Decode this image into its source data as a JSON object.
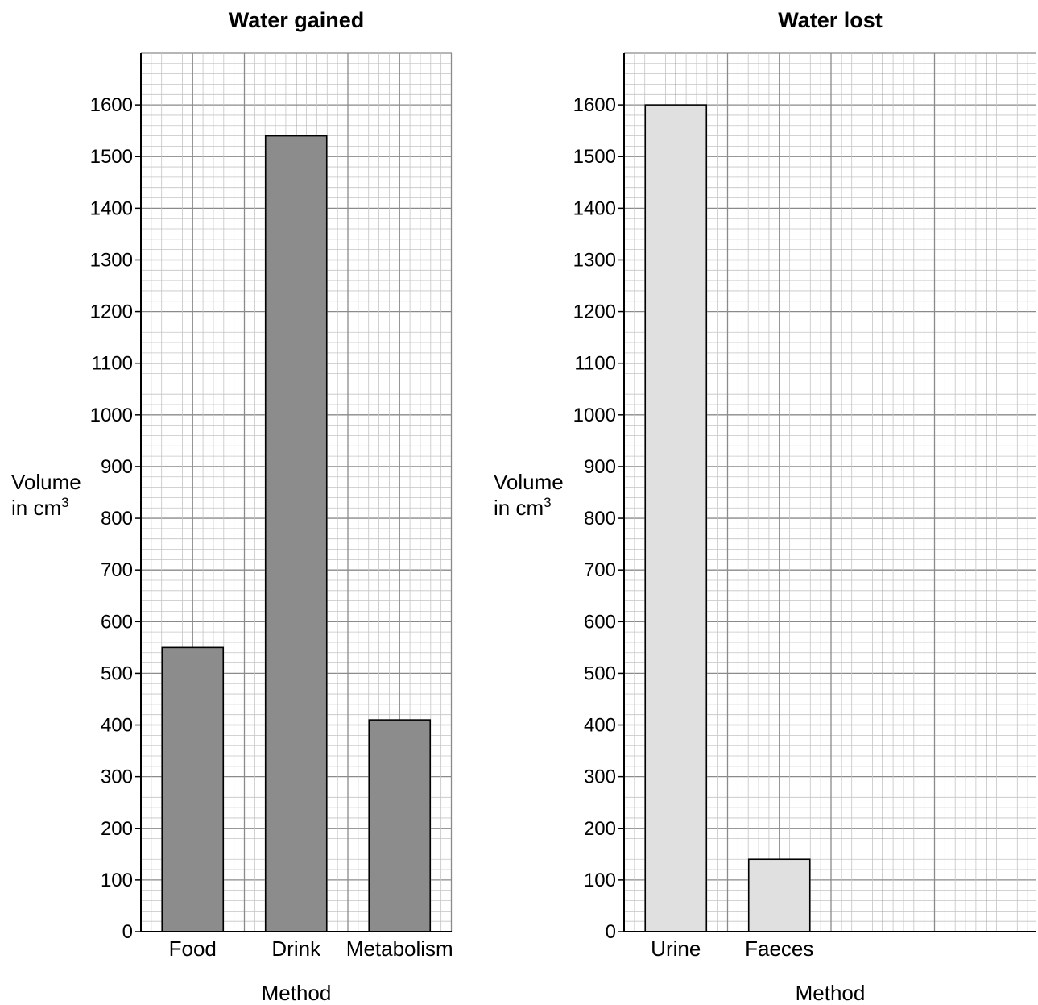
{
  "chart_data": [
    {
      "type": "bar",
      "title": "Water gained",
      "categories": [
        "Food",
        "Drink",
        "Metabolism"
      ],
      "values": [
        550,
        1540,
        410
      ],
      "xlabel": "Method",
      "ylabel": "Volume",
      "ylabel_line2": "in cm",
      "ylabel_superscript": "3",
      "ylim": [
        0,
        1700
      ],
      "yticks": [
        0,
        100,
        200,
        300,
        400,
        500,
        600,
        700,
        800,
        900,
        1000,
        1100,
        1200,
        1300,
        1400,
        1500,
        1600
      ],
      "grid": true,
      "bar_color": "#8c8c8c"
    },
    {
      "type": "bar",
      "title": "Water lost",
      "categories": [
        "Urine",
        "Faeces"
      ],
      "values": [
        1600,
        140
      ],
      "xlabel": "Method",
      "ylabel": "Volume",
      "ylabel_line2": "in cm",
      "ylabel_superscript": "3",
      "ylim": [
        0,
        1700
      ],
      "yticks": [
        0,
        100,
        200,
        300,
        400,
        500,
        600,
        700,
        800,
        900,
        1000,
        1100,
        1200,
        1300,
        1400,
        1500,
        1600
      ],
      "grid": true,
      "bar_color": "#e0e0e0"
    }
  ]
}
